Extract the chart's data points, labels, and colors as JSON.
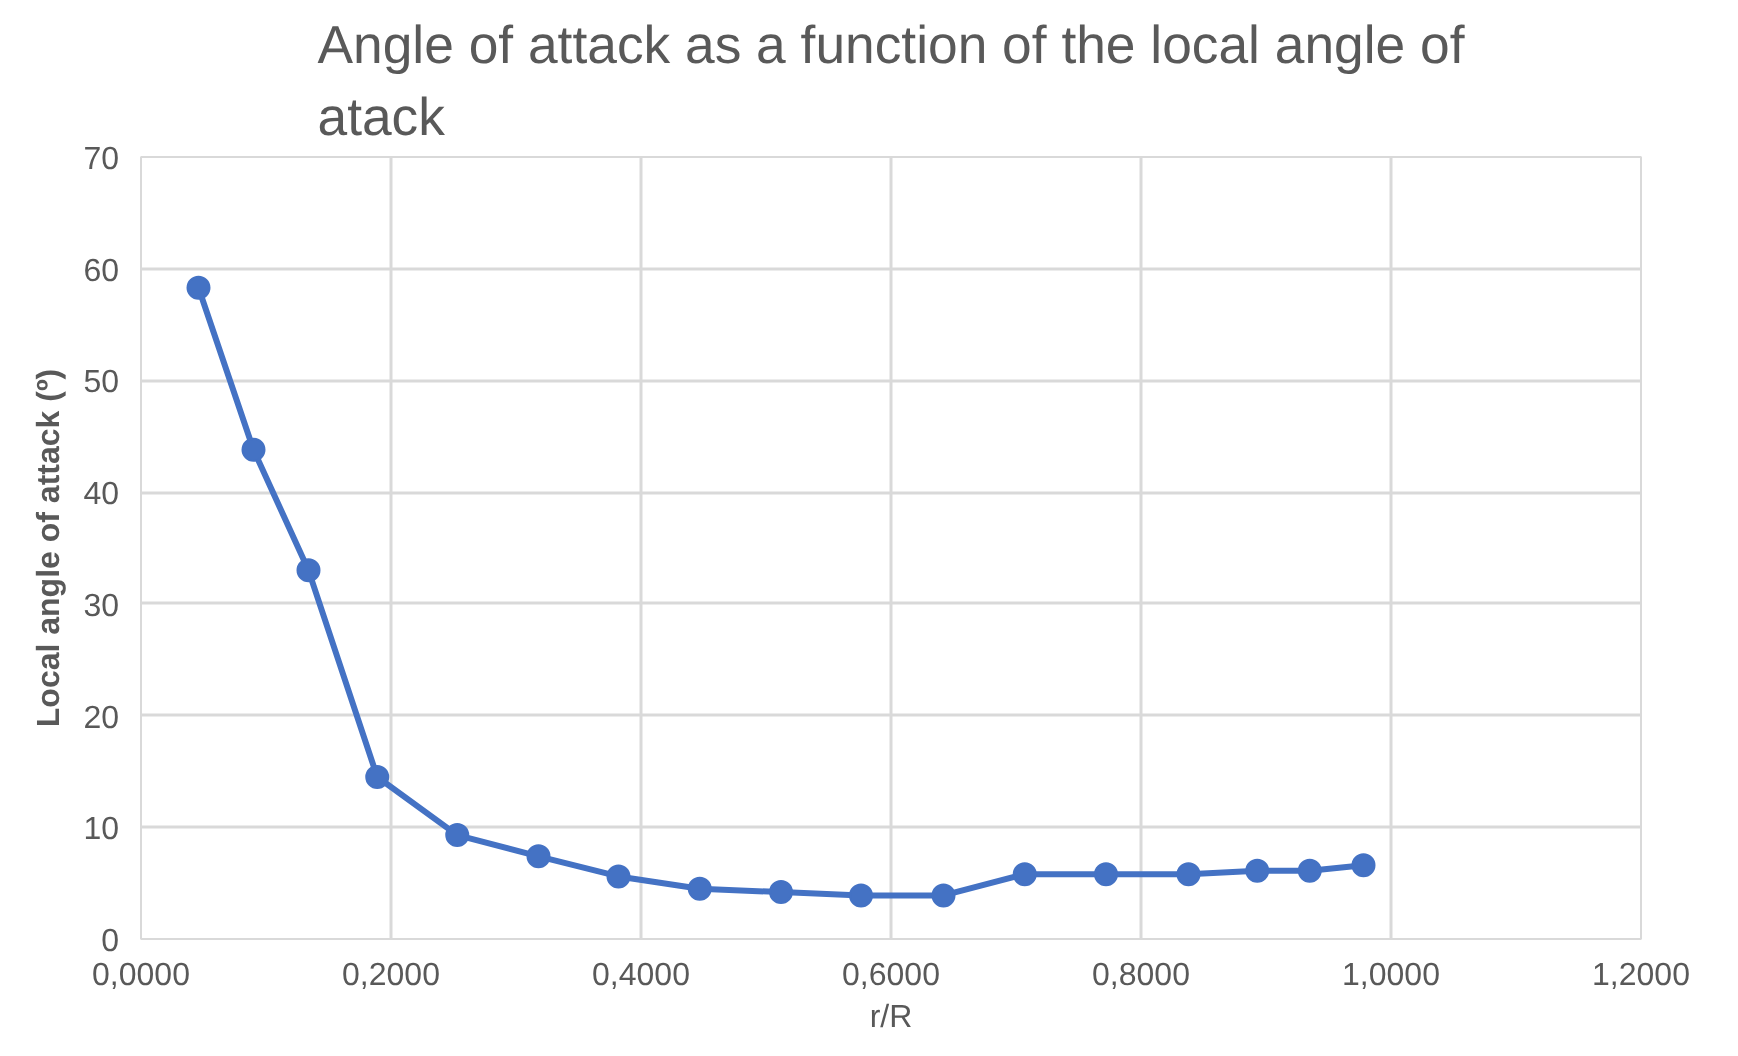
{
  "chart_data": {
    "type": "line",
    "title": "Angle of attack as a function of the local angle of atack",
    "xlabel": "r/R",
    "ylabel": "Local angle of attack (º)",
    "x": [
      0.046,
      0.09,
      0.134,
      0.189,
      0.253,
      0.318,
      0.382,
      0.447,
      0.512,
      0.576,
      0.642,
      0.707,
      0.772,
      0.838,
      0.893,
      0.935,
      0.978
    ],
    "series": [
      {
        "color": "#4472c4",
        "values": [
          58.3,
          43.8,
          33.0,
          14.5,
          9.3,
          7.4,
          5.6,
          4.5,
          4.2,
          3.9,
          3.9,
          5.8,
          5.8,
          5.8,
          6.1,
          6.1,
          6.6
        ]
      }
    ],
    "xlim": [
      0,
      1.2
    ],
    "ylim": [
      0,
      70
    ],
    "xticks": [
      {
        "value": 0,
        "label": "0,0000"
      },
      {
        "value": 0.2,
        "label": "0,2000"
      },
      {
        "value": 0.4,
        "label": "0,4000"
      },
      {
        "value": 0.6,
        "label": "0,6000"
      },
      {
        "value": 0.8,
        "label": "0,8000"
      },
      {
        "value": 1.0,
        "label": "1,0000"
      },
      {
        "value": 1.2,
        "label": "1,2000"
      }
    ],
    "yticks": [
      0,
      10,
      20,
      30,
      40,
      50,
      60,
      70
    ],
    "grid": true,
    "marker": "circle",
    "line_style": "solid"
  }
}
